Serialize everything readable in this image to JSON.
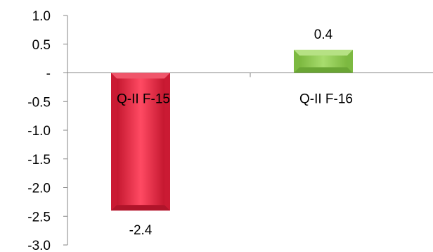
{
  "chart_data": {
    "type": "bar",
    "categories": [
      "Q-II  F-15",
      "Q-II  F-16"
    ],
    "values": [
      -2.4,
      0.4
    ],
    "data_labels": [
      "-2.4",
      "0.4"
    ],
    "ylim": [
      -3.0,
      1.0
    ],
    "yticks": [
      1.0,
      0.5,
      0.0,
      -0.5,
      -1.0,
      -1.5,
      -2.0,
      -2.5,
      -3.0
    ],
    "ytick_labels": [
      "1.0",
      "0.5",
      "-",
      "-0.5",
      "-1.0",
      "-1.5",
      "-2.0",
      "-2.5",
      "-3.0"
    ],
    "grid": false,
    "legend": "none",
    "colors": {
      "negative": "#e8233f",
      "negative_light": "#f0566b",
      "negative_dark": "#b0142a",
      "positive": "#92d050",
      "positive_light": "#b6e184",
      "positive_dark": "#6aa534",
      "axis": "#868686"
    }
  }
}
